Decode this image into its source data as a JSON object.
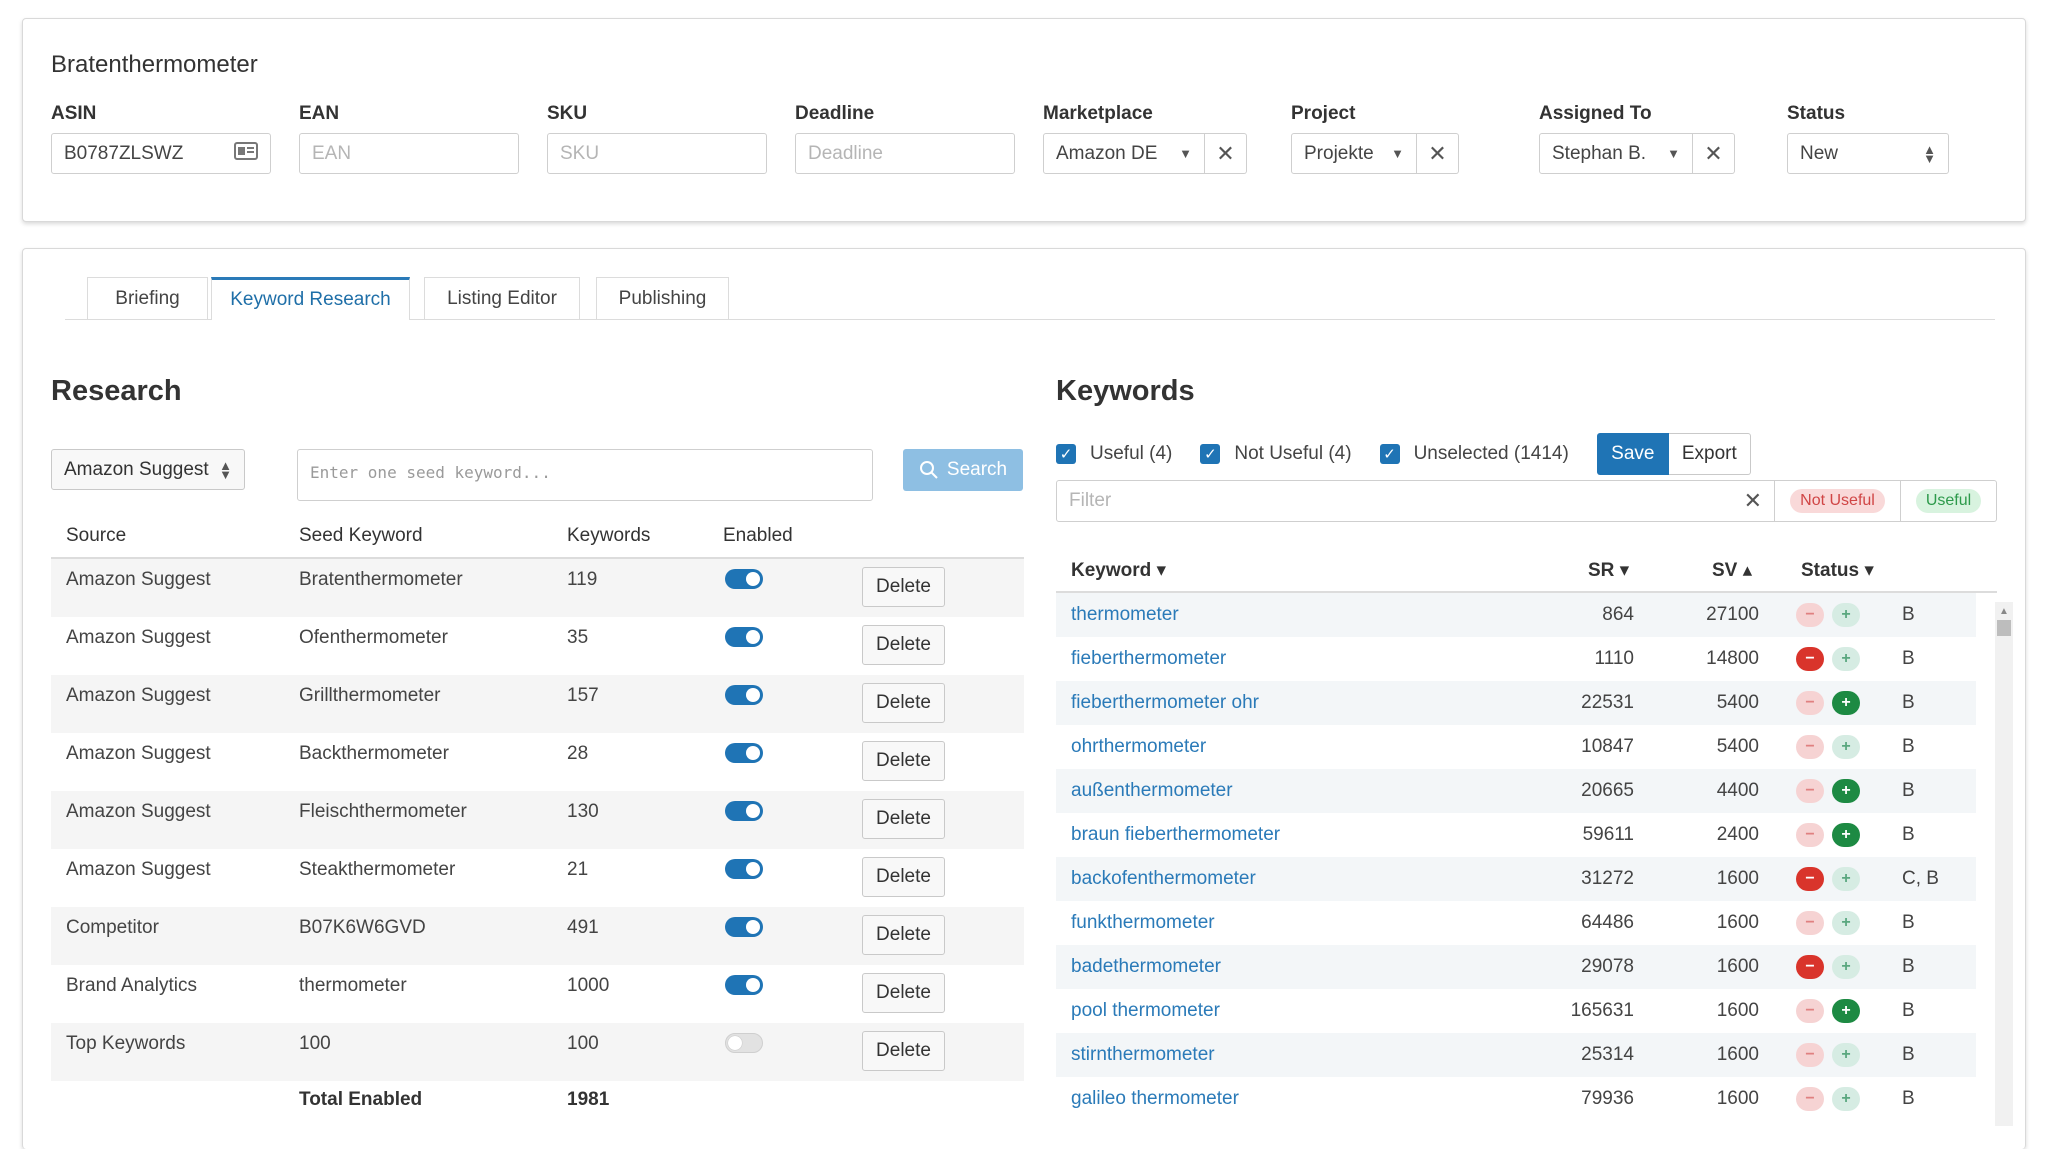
{
  "header": {
    "title": "Bratenthermometer",
    "fields": {
      "asin": {
        "label": "ASIN",
        "value": "B0787ZLSWZ",
        "icon": "id-card-icon"
      },
      "ean": {
        "label": "EAN",
        "placeholder": "EAN"
      },
      "sku": {
        "label": "SKU",
        "placeholder": "SKU"
      },
      "deadline": {
        "label": "Deadline",
        "placeholder": "Deadline"
      },
      "marketplace": {
        "label": "Marketplace",
        "value": "Amazon DE"
      },
      "project": {
        "label": "Project",
        "value": "Projekte"
      },
      "assigned_to": {
        "label": "Assigned To",
        "value": "Stephan B."
      },
      "status": {
        "label": "Status",
        "value": "New"
      }
    },
    "clear_symbol": "✕",
    "caret_symbol": "▼"
  },
  "tabs": [
    {
      "label": "Briefing",
      "active": false
    },
    {
      "label": "Keyword Research",
      "active": true
    },
    {
      "label": "Listing Editor",
      "active": false
    },
    {
      "label": "Publishing",
      "active": false
    }
  ],
  "research": {
    "title": "Research",
    "source_select": "Amazon Suggest",
    "seed_placeholder": "Enter one seed keyword...",
    "search_button": "Search",
    "columns": {
      "source": "Source",
      "seed": "Seed Keyword",
      "keywords": "Keywords",
      "enabled": "Enabled"
    },
    "delete_label": "Delete",
    "rows": [
      {
        "source": "Amazon Suggest",
        "seed": "Bratenthermometer",
        "keywords": "119",
        "enabled": true
      },
      {
        "source": "Amazon Suggest",
        "seed": "Ofenthermometer",
        "keywords": "35",
        "enabled": true
      },
      {
        "source": "Amazon Suggest",
        "seed": "Grillthermometer",
        "keywords": "157",
        "enabled": true
      },
      {
        "source": "Amazon Suggest",
        "seed": "Backthermometer",
        "keywords": "28",
        "enabled": true
      },
      {
        "source": "Amazon Suggest",
        "seed": "Fleischthermometer",
        "keywords": "130",
        "enabled": true
      },
      {
        "source": "Amazon Suggest",
        "seed": "Steakthermometer",
        "keywords": "21",
        "enabled": true
      },
      {
        "source": "Competitor",
        "seed": "B07K6W6GVD",
        "keywords": "491",
        "enabled": true
      },
      {
        "source": "Brand Analytics",
        "seed": "thermometer",
        "keywords": "1000",
        "enabled": true
      },
      {
        "source": "Top Keywords",
        "seed": "100",
        "keywords": "100",
        "enabled": false
      }
    ],
    "total_label": "Total Enabled",
    "total_value": "1981"
  },
  "keywords": {
    "title": "Keywords",
    "checkboxes": [
      {
        "label": "Useful (4)",
        "checked": true
      },
      {
        "label": "Not Useful (4)",
        "checked": true
      },
      {
        "label": "Unselected (1414)",
        "checked": true
      }
    ],
    "save_label": "Save",
    "export_label": "Export",
    "filter_placeholder": "Filter",
    "pill_not_useful": "Not Useful",
    "pill_useful": "Useful",
    "columns": {
      "keyword": "Keyword ▾",
      "sr": "SR ▾",
      "sv": "SV ▴",
      "status": "Status ▾"
    },
    "rows": [
      {
        "keyword": "thermometer",
        "sr": "864",
        "sv": "27100",
        "state": "none",
        "tag": "B"
      },
      {
        "keyword": "fieberthermometer",
        "sr": "1110",
        "sv": "14800",
        "state": "minus",
        "tag": "B"
      },
      {
        "keyword": "fieberthermometer ohr",
        "sr": "22531",
        "sv": "5400",
        "state": "plus",
        "tag": "B"
      },
      {
        "keyword": "ohrthermometer",
        "sr": "10847",
        "sv": "5400",
        "state": "none",
        "tag": "B"
      },
      {
        "keyword": "außenthermometer",
        "sr": "20665",
        "sv": "4400",
        "state": "plus",
        "tag": "B"
      },
      {
        "keyword": "braun fieberthermometer",
        "sr": "59611",
        "sv": "2400",
        "state": "plus",
        "tag": "B"
      },
      {
        "keyword": "backofenthermometer",
        "sr": "31272",
        "sv": "1600",
        "state": "minus",
        "tag": "C, B"
      },
      {
        "keyword": "funkthermometer",
        "sr": "64486",
        "sv": "1600",
        "state": "none",
        "tag": "B"
      },
      {
        "keyword": "badethermometer",
        "sr": "29078",
        "sv": "1600",
        "state": "minus",
        "tag": "B"
      },
      {
        "keyword": "pool thermometer",
        "sr": "165631",
        "sv": "1600",
        "state": "plus",
        "tag": "B"
      },
      {
        "keyword": "stirnthermometer",
        "sr": "25314",
        "sv": "1600",
        "state": "none",
        "tag": "B"
      },
      {
        "keyword": "galileo thermometer",
        "sr": "79936",
        "sv": "1600",
        "state": "none",
        "tag": "B"
      }
    ]
  },
  "colors": {
    "accent": "#1f74b5",
    "link": "#2a7ab8",
    "minus_active": "#d9342b",
    "plus_active": "#1d8a43"
  }
}
